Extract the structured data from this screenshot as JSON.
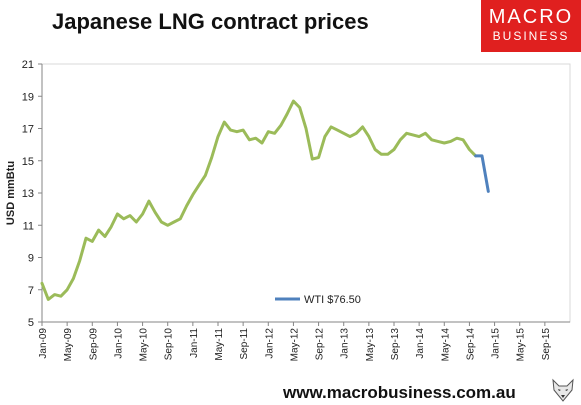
{
  "title": "Japanese LNG contract prices",
  "logo": {
    "line1": "MACRO",
    "line2": "BUSINESS",
    "color": "#e0201f"
  },
  "footer": "www.macrobusiness.com.au",
  "chart_data": {
    "type": "line",
    "title": "Japanese LNG contract prices",
    "xlabel": "",
    "ylabel": "USD mmBtu",
    "ylim": [
      5,
      21
    ],
    "yticks": [
      5,
      7,
      9,
      11,
      13,
      15,
      17,
      19,
      21
    ],
    "xlim": [
      "2009-01",
      "2016-01"
    ],
    "xtick_labels": [
      "Jan-09",
      "May-09",
      "Sep-09",
      "Jan-10",
      "May-10",
      "Sep-10",
      "Jan-11",
      "May-11",
      "Sep-11",
      "Jan-12",
      "May-12",
      "Sep-12",
      "Jan-13",
      "May-13",
      "Sep-13",
      "Jan-14",
      "May-14",
      "Sep-14",
      "Jan-15",
      "May-15",
      "Sep-15"
    ],
    "grid": false,
    "legend": "bottom-center",
    "series": [
      {
        "name": "",
        "color": "#9bbb59",
        "x": [
          "2009-01",
          "2009-02",
          "2009-03",
          "2009-04",
          "2009-05",
          "2009-06",
          "2009-07",
          "2009-08",
          "2009-09",
          "2009-10",
          "2009-11",
          "2009-12",
          "2010-01",
          "2010-02",
          "2010-03",
          "2010-04",
          "2010-05",
          "2010-06",
          "2010-07",
          "2010-08",
          "2010-09",
          "2010-10",
          "2010-11",
          "2010-12",
          "2011-01",
          "2011-02",
          "2011-03",
          "2011-04",
          "2011-05",
          "2011-06",
          "2011-07",
          "2011-08",
          "2011-09",
          "2011-10",
          "2011-11",
          "2011-12",
          "2012-01",
          "2012-02",
          "2012-03",
          "2012-04",
          "2012-05",
          "2012-06",
          "2012-07",
          "2012-08",
          "2012-09",
          "2012-10",
          "2012-11",
          "2012-12",
          "2013-01",
          "2013-02",
          "2013-03",
          "2013-04",
          "2013-05",
          "2013-06",
          "2013-07",
          "2013-08",
          "2013-09",
          "2013-10",
          "2013-11",
          "2013-12",
          "2014-01",
          "2014-02",
          "2014-03",
          "2014-04",
          "2014-05",
          "2014-06",
          "2014-07",
          "2014-08",
          "2014-09",
          "2014-10"
        ],
        "values": [
          7.4,
          6.4,
          6.7,
          6.6,
          7.0,
          7.7,
          8.8,
          10.2,
          10.0,
          10.7,
          10.3,
          10.9,
          11.7,
          11.4,
          11.6,
          11.2,
          11.7,
          12.5,
          11.8,
          11.2,
          11.0,
          11.2,
          11.4,
          12.2,
          12.9,
          13.5,
          14.1,
          15.2,
          16.5,
          17.4,
          16.9,
          16.8,
          16.9,
          16.3,
          16.4,
          16.1,
          16.8,
          16.7,
          17.2,
          17.9,
          18.7,
          18.3,
          17.0,
          15.1,
          15.2,
          16.5,
          17.1,
          16.9,
          16.7,
          16.5,
          16.7,
          17.1,
          16.5,
          15.7,
          15.4,
          15.4,
          15.7,
          16.3,
          16.7,
          16.6,
          16.5,
          16.7,
          16.3,
          16.2,
          16.1,
          16.2,
          16.4,
          16.3,
          15.7,
          15.3
        ]
      },
      {
        "name": "WTI $76.50",
        "color": "#4f81bd",
        "x": [
          "2014-10",
          "2014-11",
          "2014-12"
        ],
        "values": [
          15.3,
          15.3,
          13.1
        ]
      }
    ]
  }
}
